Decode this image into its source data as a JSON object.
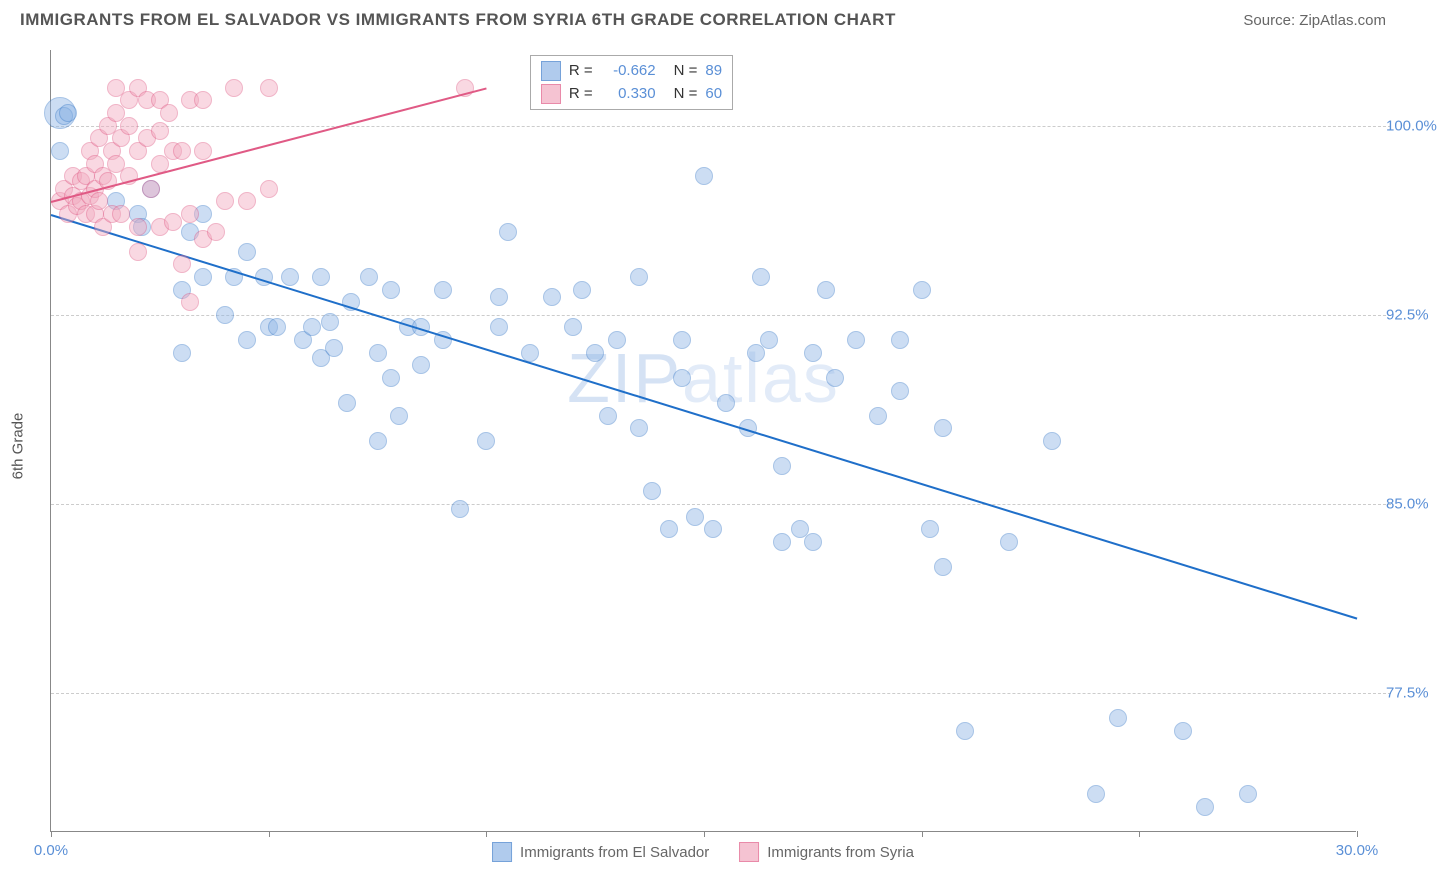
{
  "header": {
    "title": "IMMIGRANTS FROM EL SALVADOR VS IMMIGRANTS FROM SYRIA 6TH GRADE CORRELATION CHART",
    "source_label": "Source:",
    "source_value": "ZipAtlas.com"
  },
  "watermark": {
    "bold": "ZIP",
    "thin": "atlas"
  },
  "chart": {
    "type": "scatter",
    "background_color": "#ffffff",
    "axis_color": "#888888",
    "grid_color": "#cccccc",
    "tick_label_color": "#5a8fd6",
    "xlim": [
      0,
      30
    ],
    "ylim": [
      72,
      103
    ],
    "x_ticks": [
      0,
      5,
      10,
      15,
      20,
      25,
      30
    ],
    "x_tick_labels": {
      "0": "0.0%",
      "30": "30.0%"
    },
    "y_ticks": [
      77.5,
      85.0,
      92.5,
      100.0
    ],
    "y_tick_labels": [
      "77.5%",
      "85.0%",
      "92.5%",
      "100.0%"
    ],
    "y_axis_title": "6th Grade",
    "marker_radius": 9,
    "marker_big_radius": 16,
    "marker_opacity": 0.45,
    "line_width": 2,
    "series": [
      {
        "name": "Immigrants from El Salvador",
        "fill_color": "#8fb6e6",
        "stroke_color": "#3d7cc9",
        "r_value": "-0.662",
        "n_value": "89",
        "trend_line": {
          "x1": 0,
          "y1": 96.5,
          "x2": 30,
          "y2": 80.5,
          "color": "#1f6fc9"
        },
        "points": [
          [
            0.2,
            100.5
          ],
          [
            0.3,
            100.4
          ],
          [
            0.4,
            100.5
          ],
          [
            0.2,
            99.0
          ],
          [
            1.5,
            97.0
          ],
          [
            2.0,
            96.5
          ],
          [
            2.1,
            96.0
          ],
          [
            2.3,
            97.5
          ],
          [
            3.0,
            93.5
          ],
          [
            3.2,
            95.8
          ],
          [
            3.0,
            91.0
          ],
          [
            3.5,
            94.0
          ],
          [
            3.5,
            96.5
          ],
          [
            4.0,
            92.5
          ],
          [
            4.2,
            94.0
          ],
          [
            4.5,
            91.5
          ],
          [
            4.5,
            95.0
          ],
          [
            4.9,
            94.0
          ],
          [
            5.0,
            92.0
          ],
          [
            5.2,
            92.0
          ],
          [
            5.5,
            94.0
          ],
          [
            5.8,
            91.5
          ],
          [
            6.0,
            92.0
          ],
          [
            6.2,
            90.8
          ],
          [
            6.2,
            94.0
          ],
          [
            6.4,
            92.2
          ],
          [
            6.5,
            91.2
          ],
          [
            6.8,
            89.0
          ],
          [
            6.9,
            93.0
          ],
          [
            7.3,
            94.0
          ],
          [
            7.5,
            87.5
          ],
          [
            7.5,
            91.0
          ],
          [
            7.8,
            93.5
          ],
          [
            7.8,
            90.0
          ],
          [
            8.0,
            88.5
          ],
          [
            8.2,
            92.0
          ],
          [
            8.5,
            90.5
          ],
          [
            8.5,
            92.0
          ],
          [
            9.0,
            91.5
          ],
          [
            9.0,
            93.5
          ],
          [
            9.4,
            84.8
          ],
          [
            10.3,
            92.0
          ],
          [
            10.3,
            93.2
          ],
          [
            10.5,
            95.8
          ],
          [
            11.0,
            91.0
          ],
          [
            11.5,
            93.2
          ],
          [
            12.0,
            92.0
          ],
          [
            12.2,
            93.5
          ],
          [
            12.5,
            91.0
          ],
          [
            10.0,
            87.5
          ],
          [
            12.8,
            88.5
          ],
          [
            13.0,
            91.5
          ],
          [
            13.5,
            94.0
          ],
          [
            13.5,
            88.0
          ],
          [
            13.8,
            85.5
          ],
          [
            14.2,
            84.0
          ],
          [
            14.5,
            91.5
          ],
          [
            14.5,
            90.0
          ],
          [
            15.0,
            98.0
          ],
          [
            14.8,
            84.5
          ],
          [
            15.2,
            84.0
          ],
          [
            15.5,
            89.0
          ],
          [
            16.0,
            88.0
          ],
          [
            16.2,
            91.0
          ],
          [
            16.3,
            94.0
          ],
          [
            16.5,
            91.5
          ],
          [
            16.8,
            83.5
          ],
          [
            16.8,
            86.5
          ],
          [
            17.2,
            84.0
          ],
          [
            17.5,
            83.5
          ],
          [
            17.5,
            91.0
          ],
          [
            17.8,
            93.5
          ],
          [
            18.0,
            90.0
          ],
          [
            18.5,
            91.5
          ],
          [
            19.0,
            88.5
          ],
          [
            19.5,
            89.5
          ],
          [
            19.5,
            91.5
          ],
          [
            20.0,
            93.5
          ],
          [
            20.2,
            84.0
          ],
          [
            20.5,
            82.5
          ],
          [
            20.5,
            88.0
          ],
          [
            21.0,
            76.0
          ],
          [
            22.0,
            83.5
          ],
          [
            23.0,
            87.5
          ],
          [
            24.0,
            73.5
          ],
          [
            24.5,
            76.5
          ],
          [
            26.0,
            76.0
          ],
          [
            26.5,
            73.0
          ],
          [
            27.5,
            73.5
          ]
        ]
      },
      {
        "name": "Immigrants from Syria",
        "fill_color": "#f2aabf",
        "stroke_color": "#e05a85",
        "r_value": "0.330",
        "n_value": "60",
        "trend_line": {
          "x1": 0,
          "y1": 97.0,
          "x2": 10,
          "y2": 101.5,
          "color": "#e05a85"
        },
        "points": [
          [
            0.2,
            97.0
          ],
          [
            0.3,
            97.5
          ],
          [
            0.4,
            96.5
          ],
          [
            0.5,
            97.2
          ],
          [
            0.5,
            98.0
          ],
          [
            0.6,
            96.8
          ],
          [
            0.7,
            97.0
          ],
          [
            0.7,
            97.8
          ],
          [
            0.8,
            96.5
          ],
          [
            0.8,
            98.0
          ],
          [
            0.9,
            97.2
          ],
          [
            0.9,
            99.0
          ],
          [
            1.0,
            96.5
          ],
          [
            1.0,
            97.5
          ],
          [
            1.0,
            98.5
          ],
          [
            1.1,
            97.0
          ],
          [
            1.1,
            99.5
          ],
          [
            1.2,
            96.0
          ],
          [
            1.2,
            98.0
          ],
          [
            1.3,
            97.8
          ],
          [
            1.3,
            100.0
          ],
          [
            1.4,
            96.5
          ],
          [
            1.4,
            99.0
          ],
          [
            1.5,
            101.5
          ],
          [
            1.5,
            100.5
          ],
          [
            1.5,
            98.5
          ],
          [
            1.6,
            96.5
          ],
          [
            1.6,
            99.5
          ],
          [
            1.8,
            101.0
          ],
          [
            1.8,
            100.0
          ],
          [
            1.8,
            98.0
          ],
          [
            2.0,
            101.5
          ],
          [
            2.0,
            99.0
          ],
          [
            2.0,
            96.0
          ],
          [
            2.0,
            95.0
          ],
          [
            2.2,
            101.0
          ],
          [
            2.2,
            99.5
          ],
          [
            2.3,
            97.5
          ],
          [
            2.5,
            101.0
          ],
          [
            2.5,
            99.8
          ],
          [
            2.5,
            98.5
          ],
          [
            2.5,
            96.0
          ],
          [
            2.7,
            100.5
          ],
          [
            2.8,
            99.0
          ],
          [
            2.8,
            96.2
          ],
          [
            3.0,
            94.5
          ],
          [
            3.0,
            99.0
          ],
          [
            3.2,
            101.0
          ],
          [
            3.2,
            96.5
          ],
          [
            3.2,
            93.0
          ],
          [
            3.5,
            101.0
          ],
          [
            3.5,
            99.0
          ],
          [
            3.5,
            95.5
          ],
          [
            3.8,
            95.8
          ],
          [
            4.0,
            97.0
          ],
          [
            4.2,
            101.5
          ],
          [
            4.5,
            97.0
          ],
          [
            5.0,
            97.5
          ],
          [
            5.0,
            101.5
          ],
          [
            9.5,
            101.5
          ]
        ]
      }
    ]
  },
  "legend_top": {
    "r_label": "R",
    "n_label": "N",
    "eq": "="
  },
  "legend_bottom": {
    "items": [
      "Immigrants from El Salvador",
      "Immigrants from Syria"
    ]
  }
}
